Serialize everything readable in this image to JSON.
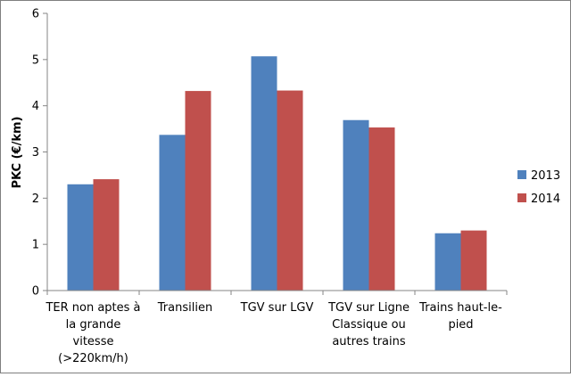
{
  "chart_data": {
    "type": "bar",
    "ylabel": "PKC (€/km)",
    "ylim": [
      0,
      6
    ],
    "yticks": [
      "0",
      "1",
      "2",
      "3",
      "4",
      "5",
      "6"
    ],
    "grid": false,
    "legend_position": "right",
    "categories": [
      [
        "TER non aptes à",
        "la grande",
        "vitesse",
        "(>220km/h)"
      ],
      [
        "Transilien"
      ],
      [
        "TGV sur LGV"
      ],
      [
        "TGV sur Ligne",
        "Classique ou",
        "autres trains"
      ],
      [
        "Trains haut-le-",
        "pied"
      ]
    ],
    "series": [
      {
        "name": "2013",
        "color": "#4f81bd",
        "values": [
          2.3,
          3.37,
          5.07,
          3.69,
          1.24
        ]
      },
      {
        "name": "2014",
        "color": "#c0504d",
        "values": [
          2.41,
          4.32,
          4.33,
          3.53,
          1.3
        ]
      }
    ]
  }
}
